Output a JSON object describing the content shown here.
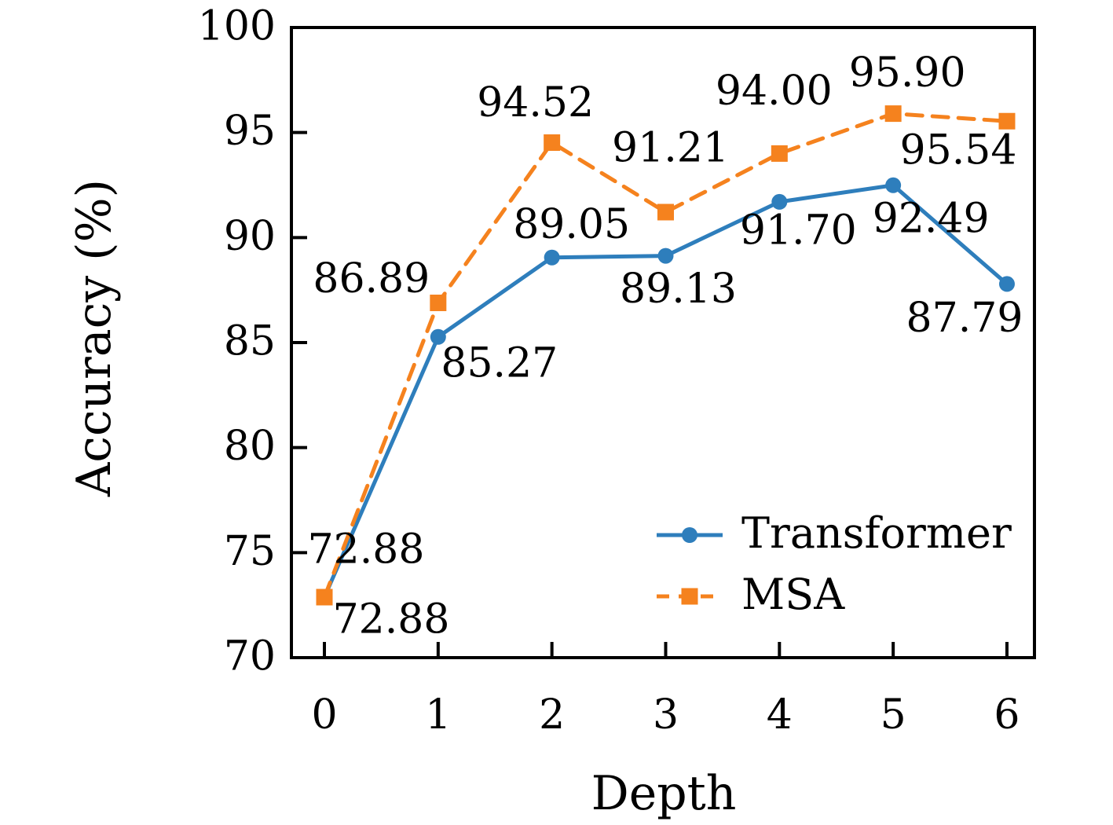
{
  "chart_data": {
    "type": "line",
    "title": "",
    "xlabel": "Depth",
    "ylabel": "Accuracy (%)",
    "x": [
      0,
      1,
      2,
      3,
      4,
      5,
      6
    ],
    "xticks": [
      "0",
      "1",
      "2",
      "3",
      "4",
      "5",
      "6"
    ],
    "yticks": [
      70,
      75,
      80,
      85,
      90,
      95,
      100
    ],
    "xlim": [
      -0.28,
      6.25
    ],
    "ylim": [
      70,
      100
    ],
    "grid": false,
    "legend_position": "lower right",
    "frame": "full-box",
    "tick_direction": "in",
    "colors": {
      "axis": "#000000",
      "text": "#000000"
    },
    "series": [
      {
        "name": "Transformer",
        "color": "#2E7EBC",
        "marker": "circle",
        "line_style": "solid",
        "values": [
          72.88,
          85.27,
          89.05,
          89.13,
          91.7,
          92.49,
          87.79
        ],
        "point_labels": [
          "72.88",
          "85.27",
          "89.05",
          "89.13",
          "91.70",
          "92.49",
          "87.79"
        ],
        "label_offsets": [
          [
            53,
            -57
          ],
          [
            78,
            37
          ],
          [
            25,
            -38
          ],
          [
            16,
            46
          ],
          [
            24,
            40
          ],
          [
            48,
            46
          ],
          [
            -54,
            47
          ]
        ]
      },
      {
        "name": "MSA",
        "color": "#F5821E",
        "marker": "square",
        "line_style": "dashed",
        "values": [
          72.88,
          86.89,
          94.52,
          91.21,
          94.0,
          95.9,
          95.54
        ],
        "point_labels": [
          "72.88",
          "86.89",
          "94.52",
          "91.21",
          "94.00",
          "95.90",
          "95.54"
        ],
        "label_offsets": [
          [
            85,
            32
          ],
          [
            -85,
            -27
          ],
          [
            -21,
            -47
          ],
          [
            6,
            -78
          ],
          [
            -7,
            -76
          ],
          [
            18,
            -48
          ],
          [
            -62,
            41
          ]
        ]
      }
    ]
  }
}
